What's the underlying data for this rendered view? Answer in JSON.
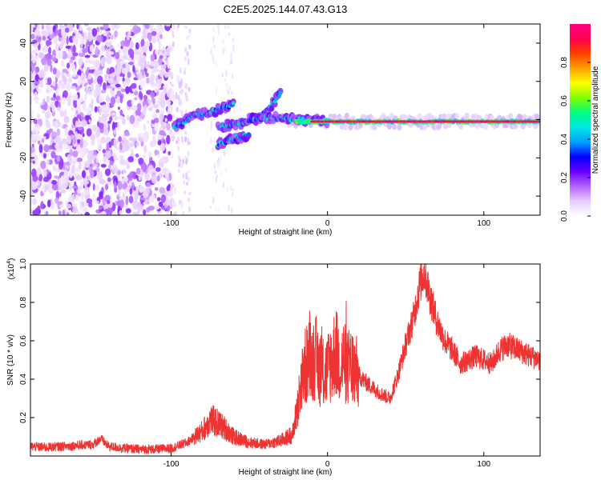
{
  "title": "C2E5.2025.144.07.43.G13",
  "chart_data": [
    {
      "type": "heatmap",
      "xlabel": "Height of straight line (km)",
      "ylabel": "Frequency (Hz)",
      "xlim": [
        -190,
        136
      ],
      "ylim": [
        -50,
        50
      ],
      "x_ticks": [
        -100,
        0,
        100
      ],
      "y_ticks": [
        -40,
        -20,
        0,
        20,
        40
      ],
      "colorbar": {
        "label": "Normalized spectral amplitude",
        "range": [
          0,
          1
        ],
        "ticks": [
          0.0,
          0.2,
          0.4,
          0.6,
          0.8
        ],
        "colors": [
          "#ffffff",
          "#e6ccff",
          "#b366ff",
          "#6a00ff",
          "#0000ff",
          "#00a0ff",
          "#00e6e6",
          "#00ff80",
          "#80ff00",
          "#ffff00",
          "#ffa000",
          "#ff4000",
          "#ff0050",
          "#ff0080"
        ]
      },
      "features": {
        "noise_region_x": [
          -190,
          -100
        ],
        "signal_line_x": [
          -20,
          136
        ],
        "signal_line_freq": -1,
        "branches": [
          {
            "x": [
              -98,
              -85,
              -70,
              -60
            ],
            "y": [
              -4,
              2,
              5,
              8
            ]
          },
          {
            "x": [
              -70,
              -55,
              -40,
              -30
            ],
            "y": [
              -4,
              -2,
              3,
              14
            ]
          },
          {
            "x": [
              -70,
              -60,
              -50
            ],
            "y": [
              -13,
              -10,
              -8
            ]
          },
          {
            "x": [
              -50,
              -35,
              -20,
              0
            ],
            "y": [
              0,
              1,
              0,
              -1
            ]
          }
        ]
      }
    },
    {
      "type": "line",
      "xlabel": "Height of straight line (km)",
      "ylabel": "SNR (10 * v/v)",
      "multiplier_label": "(x10",
      "multiplier_exp": "4",
      "multiplier_close": ")",
      "xlim": [
        -190,
        136
      ],
      "ylim": [
        0,
        1.0
      ],
      "x_ticks": [
        -100,
        0,
        100
      ],
      "y_ticks": [
        0.2,
        0.4,
        0.6,
        0.8,
        1.0
      ],
      "color": "#ee3333",
      "series": [
        {
          "x": [
            -190,
            -180,
            -170,
            -160,
            -150,
            -145,
            -140,
            -130,
            -120,
            -110,
            -100,
            -90,
            -80,
            -75,
            -70,
            -65,
            -60,
            -50,
            -40,
            -30,
            -25,
            -22,
            -20,
            -17,
            -15,
            -12,
            -10,
            -8,
            -5,
            -2,
            0,
            3,
            5,
            8,
            10,
            13,
            15,
            18,
            20,
            25,
            30,
            35,
            40,
            45,
            50,
            55,
            58,
            60,
            62,
            65,
            70,
            75,
            80,
            85,
            90,
            95,
            100,
            105,
            110,
            115,
            120,
            125,
            130,
            136
          ],
          "y": [
            0.05,
            0.045,
            0.05,
            0.055,
            0.06,
            0.09,
            0.05,
            0.04,
            0.035,
            0.035,
            0.04,
            0.07,
            0.13,
            0.19,
            0.17,
            0.14,
            0.1,
            0.07,
            0.06,
            0.08,
            0.1,
            0.12,
            0.22,
            0.35,
            0.45,
            0.5,
            0.48,
            0.52,
            0.46,
            0.42,
            0.45,
            0.5,
            0.55,
            0.48,
            0.5,
            0.45,
            0.48,
            0.44,
            0.42,
            0.38,
            0.35,
            0.32,
            0.3,
            0.42,
            0.58,
            0.72,
            0.85,
            0.92,
            0.96,
            0.85,
            0.7,
            0.6,
            0.55,
            0.48,
            0.5,
            0.52,
            0.5,
            0.48,
            0.55,
            0.58,
            0.56,
            0.54,
            0.52,
            0.5
          ]
        }
      ]
    }
  ]
}
